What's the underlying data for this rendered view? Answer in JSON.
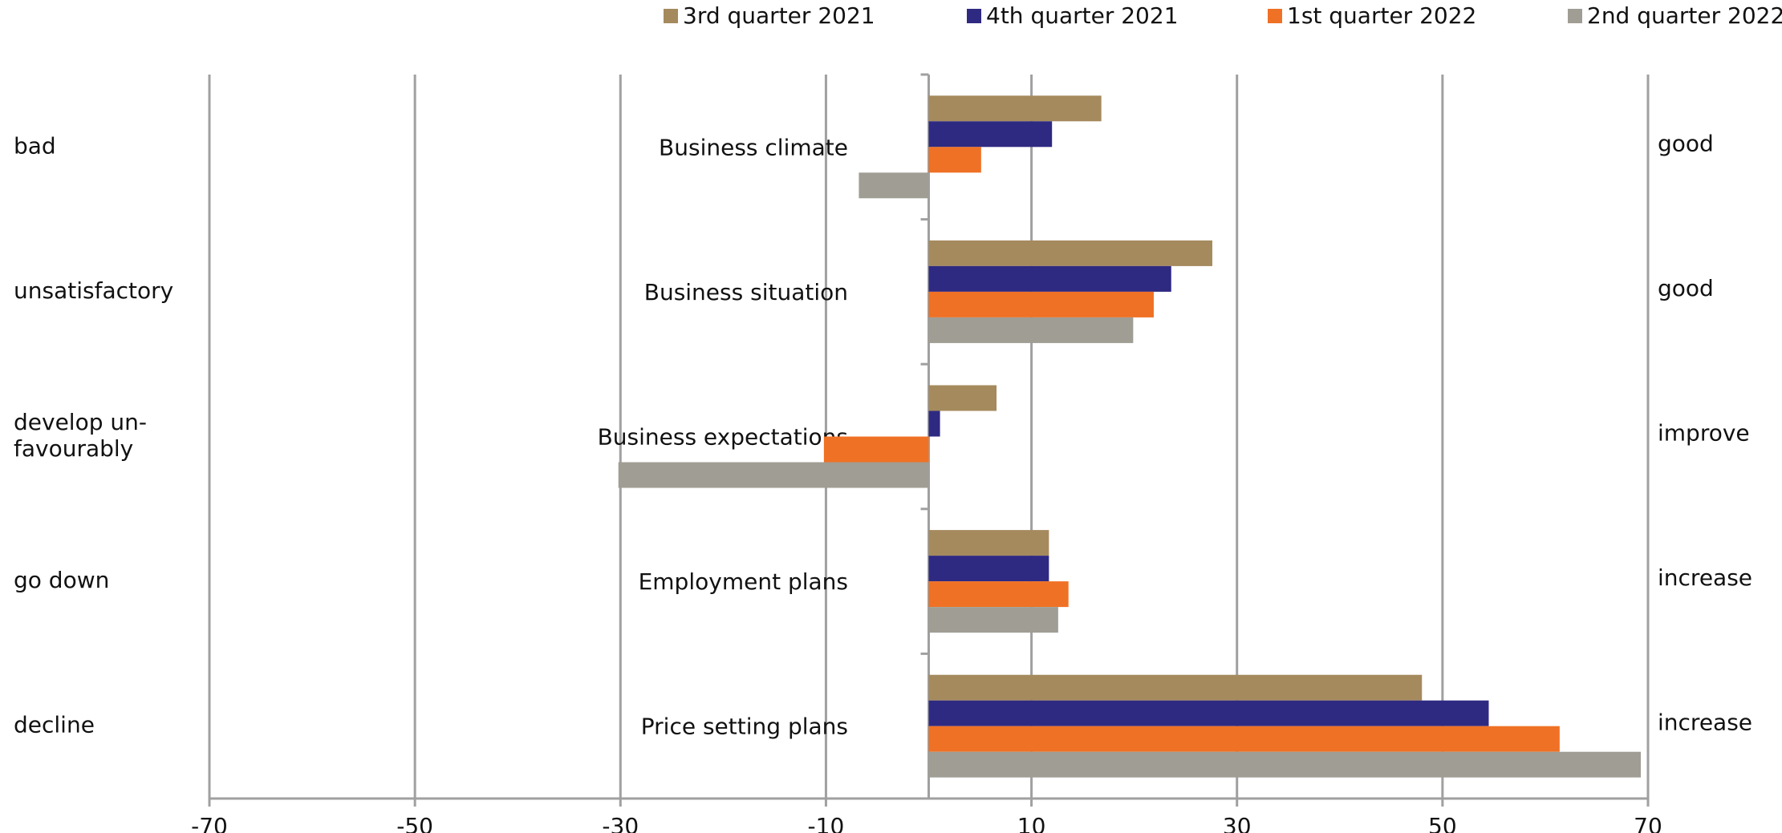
{
  "chart_data": {
    "type": "hbar",
    "categories": [
      "Business climate",
      "Business situation",
      "Business expectations",
      "Employment plans",
      "Price setting plans"
    ],
    "left_labels": [
      [
        "bad"
      ],
      [
        "unsatisfactory"
      ],
      [
        "develop un-",
        "favourably"
      ],
      [
        "go down"
      ],
      [
        "decline"
      ]
    ],
    "right_labels": [
      "good",
      "good",
      "improve",
      "increase",
      "increase"
    ],
    "series": [
      {
        "name": "3rd quarter 2021",
        "color": "#a58a5e",
        "values": [
          16.8,
          27.6,
          6.6,
          11.7,
          48
        ]
      },
      {
        "name": "4th quarter 2021",
        "color": "#2e2a82",
        "values": [
          12,
          23.6,
          1.1,
          11.7,
          54.5
        ]
      },
      {
        "name": "1st quarter 2022",
        "color": "#ef7125",
        "values": [
          5.1,
          21.9,
          -10.2,
          13.6,
          61.4
        ]
      },
      {
        "name": "2nd quarter 2022",
        "color": "#a09d94",
        "values": [
          -6.8,
          19.9,
          -30.2,
          12.6,
          69.3
        ]
      }
    ],
    "xlim": [
      -70,
      70
    ],
    "xticks": [
      -70,
      -50,
      -30,
      -10,
      10,
      30,
      50,
      70
    ],
    "grid": true,
    "legend": "top"
  }
}
